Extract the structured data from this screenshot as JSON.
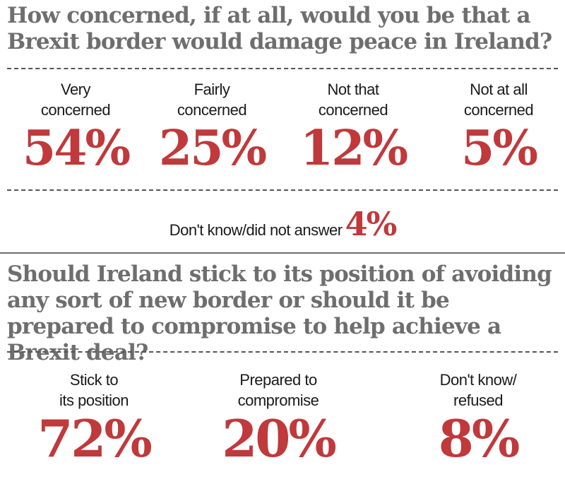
{
  "chart_data": [
    {
      "type": "table",
      "title": "How concerned, if at all, would you be that a Brexit border would damage peace in Ireland?",
      "categories": [
        "Very concerned",
        "Fairly concerned",
        "Not that concerned",
        "Not at all concerned",
        "Don't know/did not answer"
      ],
      "values": [
        54,
        25,
        12,
        5,
        4
      ],
      "labels": {
        "very_1": "Very",
        "very_2": "concerned",
        "fairly_1": "Fairly",
        "fairly_2": "concerned",
        "notthat_1": "Not that",
        "notthat_2": "concerned",
        "notatall_1": "Not at all",
        "notatall_2": "concerned",
        "dk": "Don't know/did not answer"
      },
      "display": [
        "54%",
        "25%",
        "12%",
        "5%",
        "4%"
      ]
    },
    {
      "type": "table",
      "title": "Should Ireland stick to its position of avoiding any sort of new border or should it be prepared to compromise to help achieve a Brexit deal?",
      "categories": [
        "Stick to its position",
        "Prepared to compromise",
        "Don't know/ refused"
      ],
      "values": [
        72,
        20,
        8
      ],
      "labels": {
        "stick_1": "Stick to",
        "stick_2": "its position",
        "prep_1": "Prepared to",
        "prep_2": "compromise",
        "dk_1": "Don't know/",
        "dk_2": "refused"
      },
      "display": [
        "72%",
        "20%",
        "8%"
      ]
    }
  ],
  "colors": {
    "accent": "#c0393b",
    "heading": "#6e6e6e",
    "text": "#1a1a1a"
  }
}
